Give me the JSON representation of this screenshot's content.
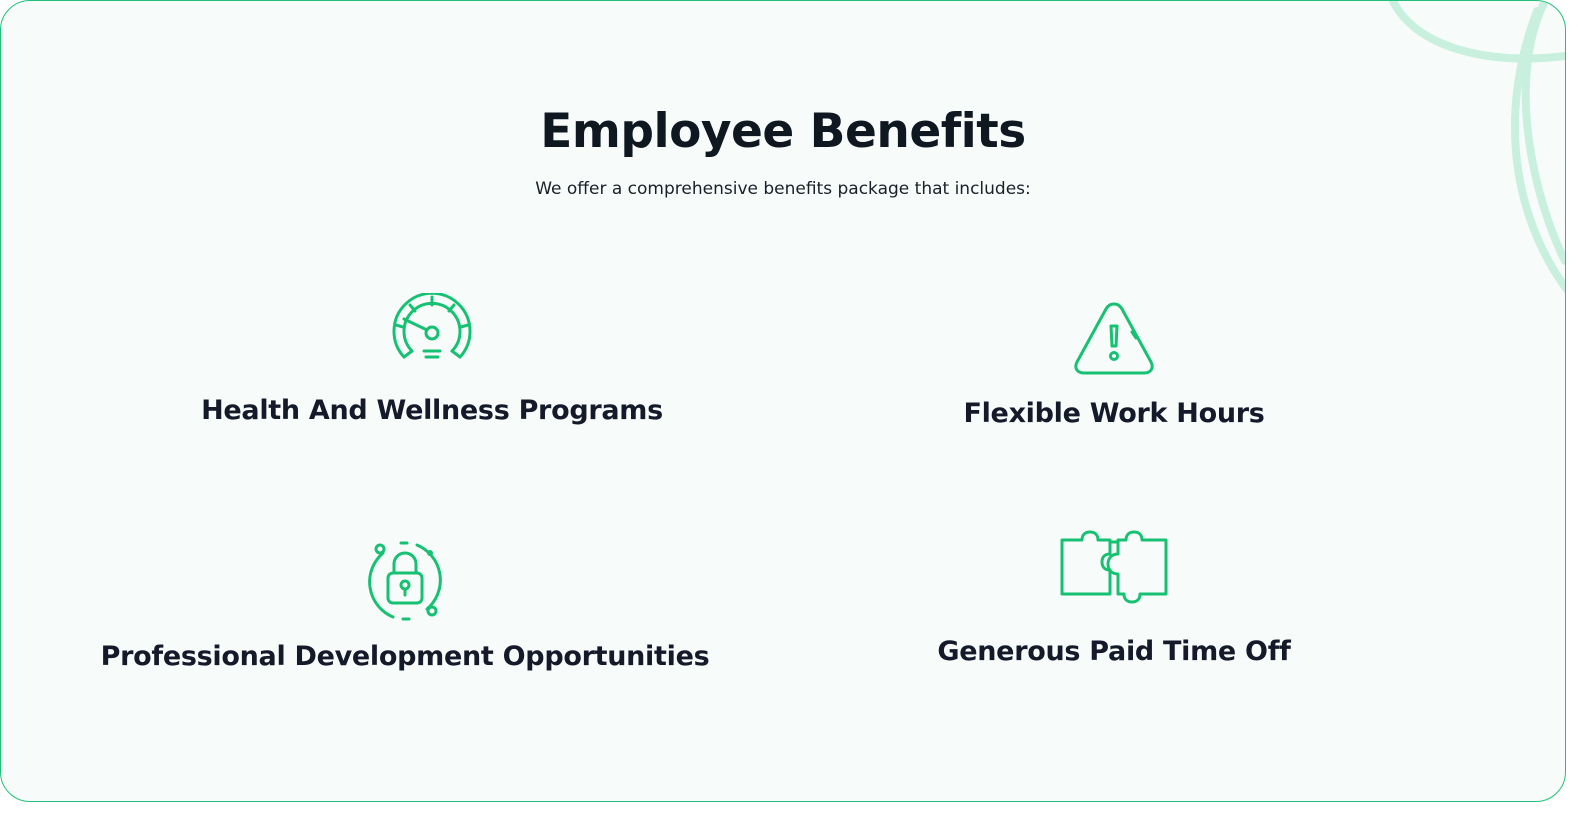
{
  "page": {
    "title": "Employee Benefits",
    "subtitle": "We offer a comprehensive benefits package that includes:"
  },
  "benefits": [
    {
      "label": "Health And Wellness Programs",
      "icon": "speedometer-icon"
    },
    {
      "label": "Flexible Work Hours",
      "icon": "warning-triangle-icon"
    },
    {
      "label": "Professional Development Opportunities",
      "icon": "lock-cycle-icon"
    },
    {
      "label": "Generous Paid Time Off",
      "icon": "puzzle-pieces-icon"
    }
  ],
  "colors": {
    "accent": "#16c172",
    "border": "#22c07a",
    "background": "#f7fcfb",
    "heading": "#0f1720",
    "decoration": "#c9f0df"
  }
}
